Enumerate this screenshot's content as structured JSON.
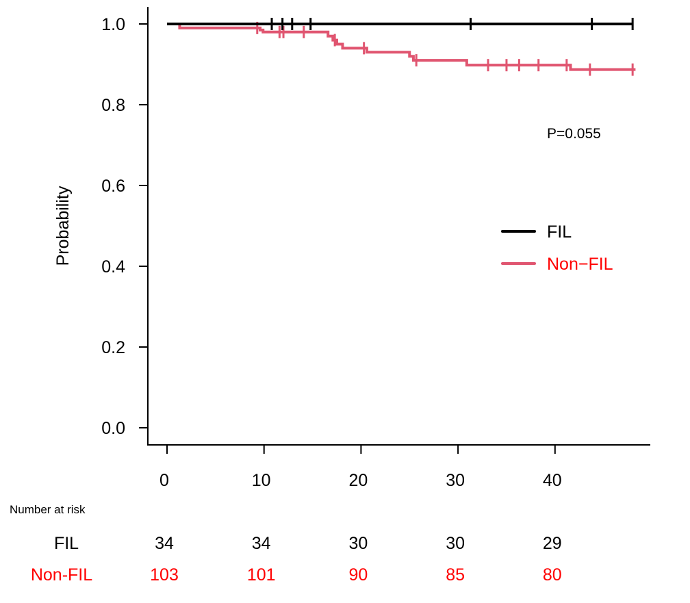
{
  "chart_data": {
    "type": "line",
    "subtype": "kaplan-meier",
    "title": "",
    "xlabel": "",
    "ylabel": "Probability",
    "xlim": [
      -2,
      50
    ],
    "ylim": [
      0,
      1
    ],
    "x_ticks": [
      0,
      10,
      20,
      30,
      40
    ],
    "x_tick_labels": [
      "0",
      "10",
      "20",
      "30",
      "40"
    ],
    "y_ticks": [
      0.0,
      0.2,
      0.4,
      0.6,
      0.8,
      1.0
    ],
    "y_tick_labels": [
      "0.0",
      "0.2",
      "0.4",
      "0.6",
      "0.8",
      "1.0"
    ],
    "grid": false,
    "annotation": "P=0.055",
    "legend": {
      "placement": "right-middle",
      "entries": [
        {
          "label": "FIL",
          "color": "#000000",
          "text_color": "#000000"
        },
        {
          "label": "Non−FIL",
          "color": "#e05570",
          "text_color": "#ff0000"
        }
      ]
    },
    "series": [
      {
        "name": "FIL",
        "color": "#000000",
        "steps": [
          {
            "t": 0,
            "s": 1.0
          },
          {
            "t": 48,
            "s": 1.0
          }
        ],
        "censored": [
          {
            "t": 10.8,
            "s": 1.0
          },
          {
            "t": 11.9,
            "s": 1.0
          },
          {
            "t": 12.9,
            "s": 1.0
          },
          {
            "t": 14.8,
            "s": 1.0
          },
          {
            "t": 31.3,
            "s": 1.0
          },
          {
            "t": 43.8,
            "s": 1.0
          },
          {
            "t": 48.0,
            "s": 1.0
          }
        ]
      },
      {
        "name": "Non-FIL",
        "color": "#e05570",
        "steps": [
          {
            "t": 0,
            "s": 1.0
          },
          {
            "t": 1.3,
            "s": 0.99
          },
          {
            "t": 9.6,
            "s": 0.985
          },
          {
            "t": 9.9,
            "s": 0.98
          },
          {
            "t": 16.6,
            "s": 0.97
          },
          {
            "t": 17.1,
            "s": 0.96
          },
          {
            "t": 17.5,
            "s": 0.95
          },
          {
            "t": 18.1,
            "s": 0.94
          },
          {
            "t": 20.6,
            "s": 0.93
          },
          {
            "t": 25.0,
            "s": 0.92
          },
          {
            "t": 25.4,
            "s": 0.91
          },
          {
            "t": 30.9,
            "s": 0.898
          },
          {
            "t": 41.6,
            "s": 0.887
          },
          {
            "t": 48.3,
            "s": 0.887
          }
        ],
        "censored": [
          {
            "t": 9.3,
            "s": 0.99
          },
          {
            "t": 11.6,
            "s": 0.98
          },
          {
            "t": 12.0,
            "s": 0.98
          },
          {
            "t": 14.1,
            "s": 0.98
          },
          {
            "t": 17.3,
            "s": 0.96
          },
          {
            "t": 20.3,
            "s": 0.94
          },
          {
            "t": 25.7,
            "s": 0.91
          },
          {
            "t": 33.1,
            "s": 0.898
          },
          {
            "t": 35.0,
            "s": 0.898
          },
          {
            "t": 36.3,
            "s": 0.898
          },
          {
            "t": 38.3,
            "s": 0.898
          },
          {
            "t": 41.2,
            "s": 0.898
          },
          {
            "t": 43.6,
            "s": 0.887
          },
          {
            "t": 48.0,
            "s": 0.887
          }
        ]
      }
    ],
    "number_at_risk": {
      "title": "Number at risk",
      "times": [
        0,
        10,
        20,
        30,
        40
      ],
      "rows": [
        {
          "label": "FIL",
          "color": "#000000",
          "values": [
            34,
            34,
            30,
            30,
            29
          ]
        },
        {
          "label": "Non-FIL",
          "color": "#ff0000",
          "values": [
            103,
            101,
            90,
            85,
            80
          ]
        }
      ]
    }
  }
}
